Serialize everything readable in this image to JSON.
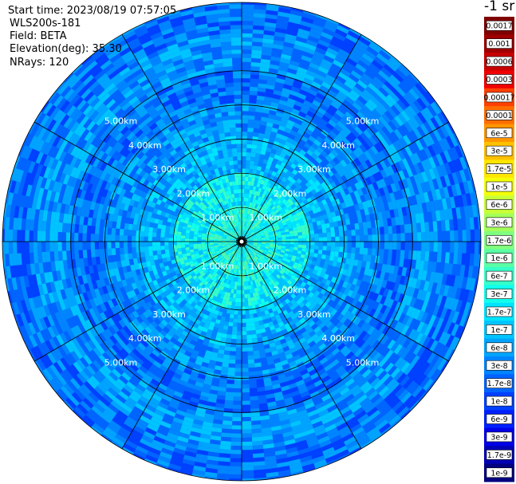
{
  "info": {
    "start_time": "Start time: 2023/08/19 07:57:05",
    "instrument": "WLS200s-181",
    "field": "Field: BETA",
    "elevation": "Elevation(deg): 35.30",
    "nrays": "NRays: 120"
  },
  "colorbar": {
    "unit_title": "-1 sr",
    "entries": [
      {
        "label": "0.0017",
        "color": "#800000"
      },
      {
        "label": "0.001",
        "color": "#9e0000"
      },
      {
        "label": "0.0006",
        "color": "#c80000"
      },
      {
        "label": "0.0003",
        "color": "#f00000"
      },
      {
        "label": "0.00017",
        "color": "#ff4000"
      },
      {
        "label": "0.0001",
        "color": "#ff6e00"
      },
      {
        "label": "6e-5",
        "color": "#ff9600"
      },
      {
        "label": "3e-5",
        "color": "#ffc000"
      },
      {
        "label": "1.7e-5",
        "color": "#ffe600"
      },
      {
        "label": "1e-5",
        "color": "#f4ff0a"
      },
      {
        "label": "6e-6",
        "color": "#c8ff36"
      },
      {
        "label": "3e-6",
        "color": "#a4ff5a"
      },
      {
        "label": "1.7e-6",
        "color": "#80ff7e"
      },
      {
        "label": "1e-6",
        "color": "#5affa4"
      },
      {
        "label": "6e-7",
        "color": "#36ffc8"
      },
      {
        "label": "3e-7",
        "color": "#12ffec"
      },
      {
        "label": "1.7e-7",
        "color": "#00e4ff"
      },
      {
        "label": "1e-7",
        "color": "#00c4ff"
      },
      {
        "label": "6e-8",
        "color": "#00a4ff"
      },
      {
        "label": "3e-8",
        "color": "#0084ff"
      },
      {
        "label": "1.7e-8",
        "color": "#0064ff"
      },
      {
        "label": "1e-8",
        "color": "#0040ff"
      },
      {
        "label": "6e-9",
        "color": "#0020ff"
      },
      {
        "label": "3e-9",
        "color": "#0000e8"
      },
      {
        "label": "1.7e-9",
        "color": "#0000b4"
      },
      {
        "label": "1e-9",
        "color": "#000080"
      }
    ]
  },
  "chart_data": {
    "type": "heatmap",
    "projection": "polar PPI scan",
    "field": "BETA",
    "elevation_deg": 35.3,
    "n_rays": 120,
    "range_rings_km": [
      1,
      2,
      3,
      4,
      5
    ],
    "max_range_km": 7.0,
    "spoke_spacing_deg": 30,
    "ring_labels": [
      "1.00km",
      "2.00km",
      "3.00km",
      "4.00km",
      "5.00km"
    ],
    "value_profile": [
      {
        "range_km": 0.5,
        "beta": "6e-7"
      },
      {
        "range_km": 1.5,
        "beta": "3e-7"
      },
      {
        "range_km": 2.5,
        "beta": "1e-7"
      },
      {
        "range_km": 3.5,
        "beta": "6e-8"
      },
      {
        "range_km": 4.5,
        "beta": "3e-8"
      },
      {
        "range_km": 5.5,
        "beta": "6e-8"
      },
      {
        "range_km": 6.5,
        "beta": "3e-8"
      }
    ]
  }
}
